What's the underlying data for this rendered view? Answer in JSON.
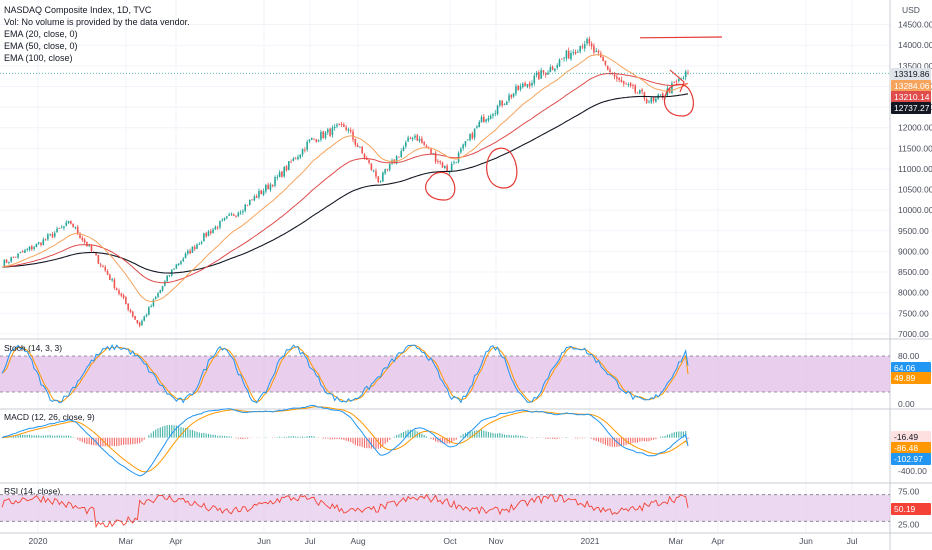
{
  "legend": {
    "title": "NASDAQ Composite Index, 1D, TVC",
    "vol_note": "Vol: No volume is provided by the data vendor.",
    "ema20": "EMA (20, close, 0)",
    "ema50": "EMA (50, close, 0)",
    "ema100": "EMA (100, close)"
  },
  "currency": "USD",
  "colors": {
    "up": "#26a69a",
    "down": "#ef5350",
    "ema20": "#f7a35c",
    "ema50": "#e04b4b",
    "ema100": "#131722",
    "stoch_k": "#2196f3",
    "stoch_d": "#ff9800",
    "band_fill": "#e1bee7",
    "rsi": "#f44336",
    "annotation": "#e53935",
    "price_tag_gray": "#dfe3ea"
  },
  "chart_data": [
    {
      "type": "candlestick",
      "name_pane": "price",
      "ylim": [
        6900,
        15000
      ],
      "y_ticks": [
        "7000.00",
        "7500.00",
        "8000.00",
        "8500.00",
        "9000.00",
        "9500.00",
        "10000.00",
        "10500.00",
        "11000.00",
        "11500.00",
        "12000.00",
        "12500.00",
        "13000.00",
        "13500.00",
        "14000.00",
        "14500.00"
      ],
      "x_tick_labels": [
        "2020",
        "Mar",
        "Apr",
        "Jun",
        "Jul",
        "Aug",
        "Oct",
        "Nov",
        "2021",
        "Mar",
        "Apr",
        "Jun",
        "Jul"
      ],
      "close_path_monthly": [
        {
          "t": "2019-12",
          "v": 8700
        },
        {
          "t": "2020-01",
          "v": 9150
        },
        {
          "t": "2020-02",
          "v": 9700
        },
        {
          "t": "2020-02b",
          "v": 8550
        },
        {
          "t": "2020-03",
          "v": 7200
        },
        {
          "t": "2020-04",
          "v": 8600
        },
        {
          "t": "2020-05",
          "v": 9450
        },
        {
          "t": "2020-06",
          "v": 10050
        },
        {
          "t": "2020-07",
          "v": 10750
        },
        {
          "t": "2020-08",
          "v": 11700
        },
        {
          "t": "2020-09a",
          "v": 12050
        },
        {
          "t": "2020-09b",
          "v": 10700
        },
        {
          "t": "2020-10a",
          "v": 11850
        },
        {
          "t": "2020-10b",
          "v": 10950
        },
        {
          "t": "2020-11",
          "v": 12200
        },
        {
          "t": "2020-12",
          "v": 12900
        },
        {
          "t": "2021-01",
          "v": 13450
        },
        {
          "t": "2021-02a",
          "v": 14100
        },
        {
          "t": "2021-02b",
          "v": 13100
        },
        {
          "t": "2021-03a",
          "v": 12600
        },
        {
          "t": "2021-03b",
          "v": 13320
        }
      ],
      "price_tags": [
        {
          "label": "13319.86",
          "kind": "last"
        },
        {
          "label": "13284.06",
          "kind": "ema20"
        },
        {
          "label": "13210.14",
          "kind": "ema50"
        },
        {
          "label": "12737.27",
          "kind": "ema100"
        }
      ],
      "annotations": [
        "horizontal-line-near-14150",
        "circle-oct",
        "circle-nov",
        "circle-mar"
      ]
    },
    {
      "type": "line",
      "name_pane": "stoch",
      "title": "Stoch (14, 3, 3)",
      "ylim": [
        0,
        100
      ],
      "y_ticks": [
        "80.00",
        "0.00"
      ],
      "band": [
        20,
        80
      ],
      "tags": [
        {
          "label": "64.06",
          "kind": "k"
        },
        {
          "label": "49.89",
          "kind": "d"
        }
      ]
    },
    {
      "type": "histogram+line",
      "name_pane": "macd",
      "title": "MACD (12, 26, close, 9)",
      "y_ticks": [
        "-400.00"
      ],
      "tags": [
        {
          "label": "-16.49",
          "kind": "hist"
        },
        {
          "label": "-86.48",
          "kind": "signal"
        },
        {
          "label": "-102.97",
          "kind": "macd"
        }
      ]
    },
    {
      "type": "line",
      "name_pane": "rsi",
      "title": "RSI (14, close)",
      "ylim": [
        20,
        80
      ],
      "y_ticks": [
        "75.00",
        "25.00"
      ],
      "band": [
        30,
        70
      ],
      "tags": [
        {
          "label": "50.19",
          "kind": "rsi"
        }
      ]
    }
  ]
}
